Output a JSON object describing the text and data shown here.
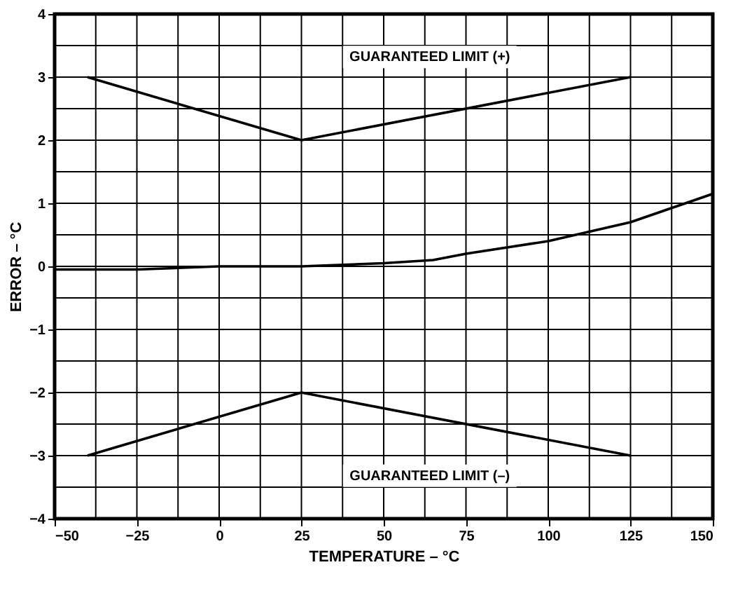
{
  "chart_data": {
    "type": "line",
    "xlabel": "TEMPERATURE – °C",
    "ylabel": "ERROR – °C",
    "xlim": [
      -50,
      150
    ],
    "ylim": [
      -4,
      4
    ],
    "xticks": [
      -50,
      {
        "value": -37.5,
        "label": null
      },
      -25,
      {
        "value": -12.5,
        "label": null
      },
      0,
      {
        "value": 12.5,
        "label": null
      },
      25,
      {
        "value": 37.5,
        "label": null
      },
      50,
      {
        "value": 62.5,
        "label": null
      },
      75,
      {
        "value": 87.5,
        "label": null
      },
      100,
      {
        "value": 112.5,
        "label": null
      },
      125,
      {
        "value": 137.5,
        "label": null
      },
      150
    ],
    "yticks": [
      -4,
      {
        "value": -3.5,
        "label": null
      },
      -3,
      {
        "value": -2.5,
        "label": null
      },
      -2,
      {
        "value": -1.5,
        "label": null
      },
      -1,
      {
        "value": -0.5,
        "label": null
      },
      0,
      {
        "value": 0.5,
        "label": null
      },
      1,
      {
        "value": 1.5,
        "label": null
      },
      2,
      {
        "value": 2.5,
        "label": null
      },
      3,
      {
        "value": 3.5,
        "label": null
      },
      4
    ],
    "grid": true,
    "line_style": "solid",
    "marker": "none",
    "series": [
      {
        "color": "#000000",
        "x": [
          -40,
          25,
          125
        ],
        "values": [
          3,
          2,
          3
        ]
      },
      {
        "color": "#000000",
        "x": [
          -50,
          -25,
          0,
          25,
          50,
          65,
          75,
          100,
          125,
          150
        ],
        "values": [
          -0.05,
          -0.05,
          0,
          0,
          0.05,
          0.1,
          0.2,
          0.4,
          0.7,
          1.15
        ]
      },
      {
        "color": "#000000",
        "x": [
          -40,
          25,
          125
        ],
        "values": [
          -3,
          -2,
          -3
        ]
      }
    ],
    "annotations": [
      "GUARANTEED LIMIT (+)",
      "GUARANTEED LIMIT (–)"
    ]
  }
}
